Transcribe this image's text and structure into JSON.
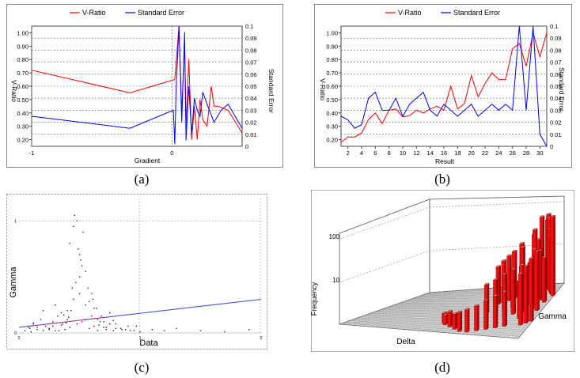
{
  "colors": {
    "v_ratio": "#ff0000",
    "standard_error": "#0000ff",
    "bar_red": "#ee1111",
    "grid_floor": "#bbbbbb",
    "panel_d_bg": "#ffffff"
  },
  "captions": {
    "a": "(a)",
    "b": "(b)",
    "c": "(c)",
    "d": "(d)"
  },
  "chart_data": [
    {
      "id": "a",
      "type": "line",
      "legend": [
        "V-Ratio",
        "Standard Error"
      ],
      "xlabel": "Gradient",
      "ylabel_left": "V-Ratio",
      "ylabel_right": "Standard Error",
      "xlim": [
        -1,
        0.5
      ],
      "ylim_left": [
        0.15,
        1.05
      ],
      "ylim_right": [
        0,
        0.1
      ],
      "x_ticks": [
        "-1",
        "0"
      ],
      "y_ticks_left": [
        "0.20",
        "0.30",
        "0.40",
        "0.50",
        "0.60",
        "0.70",
        "0.80",
        "0.90",
        "1.00"
      ],
      "y_ticks_right": [
        "0",
        "0.01",
        "0.02",
        "0.03",
        "0.04",
        "0.05",
        "0.06",
        "0.07",
        "0.08",
        "0.09",
        "0.1"
      ],
      "series": [
        {
          "name": "V-Ratio",
          "axis": "left",
          "x": [
            -1,
            -0.3,
            0.02,
            0.05,
            0.07,
            0.09,
            0.1,
            0.12,
            0.14,
            0.16,
            0.18,
            0.2,
            0.22,
            0.25,
            0.28,
            0.3,
            0.33,
            0.4,
            0.5
          ],
          "y": [
            0.72,
            0.55,
            0.65,
            1.05,
            0.4,
            0.95,
            0.3,
            0.8,
            0.2,
            0.45,
            0.2,
            0.5,
            0.35,
            0.3,
            0.6,
            0.45,
            0.45,
            0.42,
            0.25
          ]
        },
        {
          "name": "Standard Error",
          "axis": "right",
          "x": [
            -1,
            -0.3,
            0.01,
            0.02,
            0.03,
            0.05,
            0.07,
            0.09,
            0.1,
            0.12,
            0.14,
            0.16,
            0.18,
            0.2,
            0.22,
            0.25,
            0.3,
            0.35,
            0.4,
            0.5
          ],
          "y": [
            0.025,
            0.015,
            0.03,
            0.002,
            0.05,
            0.1,
            0.02,
            0.095,
            0.005,
            0.05,
            0.01,
            0.04,
            0.03,
            0.025,
            0.045,
            0.035,
            0.02,
            0.03,
            0.035,
            0.015
          ]
        }
      ]
    },
    {
      "id": "b",
      "type": "line",
      "legend": [
        "V-Ratio",
        "Standard Error"
      ],
      "xlabel": "Result",
      "ylabel_left": "V-Ratio",
      "ylabel_right": "Standard Error",
      "xlim": [
        1,
        31
      ],
      "ylim_left": [
        0.15,
        1.05
      ],
      "ylim_right": [
        0,
        0.1
      ],
      "x_ticks": [
        "2",
        "4",
        "6",
        "8",
        "10",
        "12",
        "14",
        "16",
        "18",
        "20",
        "22",
        "24",
        "26",
        "28",
        "30"
      ],
      "y_ticks_left": [
        "0.20",
        "0.30",
        "0.40",
        "0.50",
        "0.60",
        "0.70",
        "0.80",
        "0.90",
        "1.00"
      ],
      "y_ticks_right": [
        "0",
        "0.01",
        "0.02",
        "0.03",
        "0.04",
        "0.05",
        "0.06",
        "0.07",
        "0.08",
        "0.09",
        "0.1"
      ],
      "series": [
        {
          "name": "V-Ratio",
          "axis": "left",
          "x": [
            1,
            2,
            3,
            4,
            5,
            6,
            7,
            8,
            9,
            10,
            11,
            12,
            13,
            14,
            15,
            16,
            17,
            18,
            19,
            20,
            21,
            22,
            23,
            24,
            25,
            26,
            27,
            28,
            29,
            30,
            31
          ],
          "y": [
            0.18,
            0.22,
            0.22,
            0.25,
            0.35,
            0.4,
            0.32,
            0.42,
            0.43,
            0.37,
            0.38,
            0.42,
            0.4,
            0.43,
            0.45,
            0.42,
            0.6,
            0.43,
            0.47,
            0.68,
            0.52,
            0.62,
            0.7,
            0.65,
            0.65,
            0.88,
            0.92,
            0.75,
            1.0,
            0.82,
            1.0
          ]
        },
        {
          "name": "Standard Error",
          "axis": "right",
          "x": [
            1,
            2,
            3,
            4,
            5,
            6,
            7,
            8,
            9,
            10,
            11,
            12,
            13,
            14,
            15,
            16,
            17,
            18,
            19,
            20,
            21,
            22,
            23,
            24,
            25,
            26,
            27,
            28,
            29,
            30,
            31
          ],
          "y": [
            0.025,
            0.022,
            0.015,
            0.018,
            0.04,
            0.045,
            0.03,
            0.03,
            0.04,
            0.025,
            0.035,
            0.04,
            0.045,
            0.03,
            0.025,
            0.035,
            0.03,
            0.025,
            0.03,
            0.035,
            0.025,
            0.03,
            0.035,
            0.03,
            0.035,
            0.03,
            0.1,
            0.03,
            0.1,
            0.01,
            0.0
          ]
        }
      ]
    },
    {
      "id": "c",
      "type": "scatter",
      "xlabel": "Data",
      "ylabel": "Gamma",
      "xlim": [
        0,
        2
      ],
      "ylim": [
        0,
        1.2
      ],
      "x_ticks": [
        "0",
        "1",
        "2"
      ],
      "y_ticks": [
        "0",
        "1"
      ],
      "trend_line": {
        "x": [
          0,
          2
        ],
        "y": [
          0.05,
          0.3
        ]
      },
      "points": {
        "x": [
          0.05,
          0.08,
          0.1,
          0.12,
          0.15,
          0.18,
          0.2,
          0.22,
          0.25,
          0.28,
          0.3,
          0.32,
          0.35,
          0.38,
          0.4,
          0.42,
          0.45,
          0.48,
          0.5,
          0.52,
          0.55,
          0.58,
          0.6,
          0.62,
          0.65,
          0.68,
          0.7,
          0.72,
          0.75,
          0.78,
          0.8,
          0.85,
          0.9,
          0.95,
          1.0,
          1.1,
          1.2,
          1.3,
          1.5,
          1.7,
          1.9,
          0.42,
          0.45,
          0.48,
          0.5,
          0.52,
          0.55,
          0.47,
          0.44,
          0.5,
          0.53,
          0.46,
          0.49,
          0.51,
          0.43,
          0.6,
          0.65,
          0.7,
          0.75,
          0.8,
          0.2,
          0.3,
          0.35,
          0.55,
          0.62,
          0.58,
          0.4,
          0.36,
          0.28,
          0.15,
          0.12,
          0.09,
          0.25,
          0.33,
          0.66,
          0.72,
          0.78,
          0.84,
          0.88,
          0.92,
          0.97,
          0.57,
          0.61,
          0.64,
          0.67,
          0.41,
          0.39,
          0.37
        ],
        "y": [
          0.02,
          0.05,
          0.01,
          0.08,
          0.03,
          0.12,
          0.02,
          0.06,
          0.04,
          0.1,
          0.02,
          0.15,
          0.07,
          0.03,
          0.2,
          0.05,
          0.3,
          0.08,
          0.5,
          0.1,
          0.25,
          0.04,
          0.35,
          0.06,
          0.02,
          0.15,
          0.05,
          0.03,
          0.08,
          0.02,
          0.04,
          0.03,
          0.06,
          0.02,
          0.01,
          0.03,
          0.02,
          0.04,
          0.02,
          0.01,
          0.03,
          0.8,
          0.95,
          1.0,
          0.7,
          0.6,
          0.55,
          0.45,
          0.4,
          0.35,
          0.9,
          1.05,
          0.75,
          0.65,
          0.2,
          0.15,
          0.12,
          0.1,
          0.18,
          0.08,
          0.2,
          0.25,
          0.18,
          0.12,
          0.22,
          0.28,
          0.12,
          0.08,
          0.06,
          0.05,
          0.09,
          0.04,
          0.03,
          0.02,
          0.07,
          0.05,
          0.11,
          0.04,
          0.03,
          0.02,
          0.06,
          0.4,
          0.3,
          0.22,
          0.1,
          0.14,
          0.09,
          0.16
        ]
      }
    },
    {
      "id": "d",
      "type": "heatmap",
      "subtype": "3d-bar",
      "xlabel": "Delta",
      "ylabel": "Gamma",
      "zlabel": "Frequency",
      "z_ticks": [
        "10",
        "100"
      ],
      "z_scale": "log",
      "bars": {
        "delta": [
          40,
          42,
          43,
          44,
          45,
          46,
          47,
          38,
          39,
          41,
          36,
          37,
          35,
          34,
          33,
          32,
          44,
          45,
          46,
          42,
          40,
          38,
          43,
          47,
          46,
          45,
          41,
          39,
          37,
          35,
          33,
          31,
          29,
          27,
          25,
          24,
          44,
          46,
          42,
          40,
          38,
          36,
          34,
          32
        ],
        "gamma": [
          25,
          25,
          24,
          23,
          22,
          21,
          20,
          24,
          23,
          22,
          21,
          20,
          19,
          18,
          17,
          16,
          15,
          14,
          13,
          12,
          11,
          10,
          9,
          8,
          7,
          6,
          5,
          4,
          3,
          2,
          1,
          1,
          2,
          3,
          4,
          5,
          18,
          17,
          16,
          15,
          14,
          13,
          12,
          11
        ],
        "freq": [
          150,
          120,
          200,
          180,
          90,
          60,
          300,
          50,
          80,
          45,
          40,
          35,
          30,
          25,
          20,
          15,
          60,
          45,
          70,
          30,
          25,
          20,
          15,
          90,
          60,
          40,
          12,
          10,
          8,
          6,
          5,
          4,
          3,
          3,
          2,
          2,
          35,
          25,
          20,
          18,
          15,
          12,
          10,
          8
        ]
      }
    }
  ]
}
